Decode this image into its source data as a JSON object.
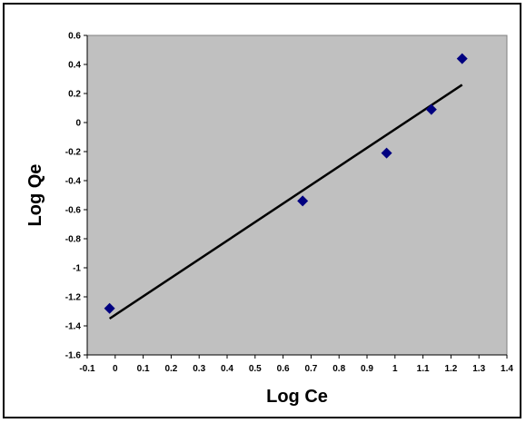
{
  "chart_data": {
    "type": "scatter",
    "xlabel": "Log Ce",
    "ylabel": "Log Qe",
    "xlim": [
      -0.1,
      1.4
    ],
    "ylim": [
      -1.6,
      0.6
    ],
    "x_ticks": [
      "-0.1",
      "0",
      "0.1",
      "0.2",
      "0.3",
      "0.4",
      "0.5",
      "0.6",
      "0.7",
      "0.8",
      "0.9",
      "1",
      "1.1",
      "1.2",
      "1.3",
      "1.4"
    ],
    "y_ticks": [
      "0.6",
      "0.4",
      "0.2",
      "0",
      "-0.2",
      "-0.4",
      "-0.6",
      "-0.8",
      "-1",
      "-1.2",
      "-1.4",
      "-1.6"
    ],
    "grid": false,
    "legend": "none",
    "plot_background": "#c0c0c0",
    "series": [
      {
        "marker": "diamond",
        "color": "#000080",
        "points": [
          {
            "x": -0.02,
            "y": -1.28
          },
          {
            "x": 0.67,
            "y": -0.54
          },
          {
            "x": 0.97,
            "y": -0.21
          },
          {
            "x": 1.13,
            "y": 0.09
          },
          {
            "x": 1.24,
            "y": 0.44
          }
        ]
      }
    ],
    "trendline": {
      "type": "linear",
      "color": "#000000",
      "from": {
        "x": -0.02,
        "y": -1.35
      },
      "to": {
        "x": 1.24,
        "y": 0.26
      }
    }
  }
}
